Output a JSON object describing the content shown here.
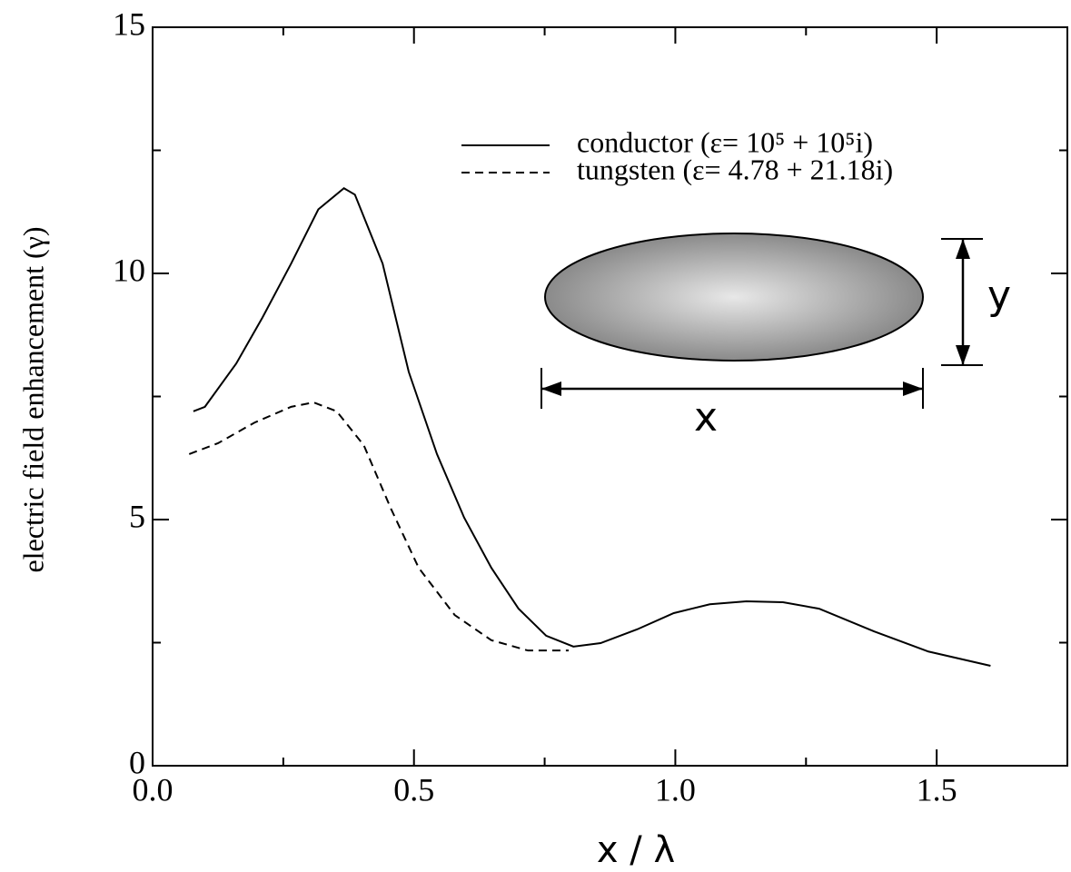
{
  "chart_data": {
    "type": "line",
    "x_label": "x / λ",
    "y_label": "electric field enhancement (γ)",
    "xlim": [
      0,
      1.75
    ],
    "ylim": [
      0,
      15
    ],
    "xticks": [
      {
        "value": 0,
        "label": "0.0"
      },
      {
        "value": 0.5,
        "label": "0.5"
      },
      {
        "value": 1,
        "label": "1.0"
      },
      {
        "value": 1.5,
        "label": "1.5"
      }
    ],
    "yticks": [
      0,
      5,
      10,
      15
    ],
    "xminor_ticks": [
      0.25,
      0.75,
      1.25
    ],
    "yminor_ticks": [
      2.5,
      7.5,
      12.5
    ],
    "legend": "upper right",
    "series": [
      {
        "name": "conductor (ε= 10⁵ + 10⁵i)",
        "color": "#000000",
        "line_style": "solid",
        "x": [
          0.078,
          0.1,
          0.16,
          0.21,
          0.265,
          0.317,
          0.366,
          0.387,
          0.44,
          0.49,
          0.544,
          0.596,
          0.648,
          0.7,
          0.753,
          0.805,
          0.857,
          0.927,
          0.997,
          1.066,
          1.136,
          1.206,
          1.275,
          1.38,
          1.484,
          1.603
        ],
        "values": [
          7.2,
          7.29,
          8.17,
          9.1,
          10.2,
          11.3,
          11.73,
          11.6,
          10.2,
          8.0,
          6.33,
          5.04,
          4.02,
          3.19,
          2.64,
          2.42,
          2.49,
          2.77,
          3.1,
          3.28,
          3.34,
          3.32,
          3.19,
          2.73,
          2.32,
          2.03
        ]
      },
      {
        "name": "tungsten (ε= 4.78 + 21.18i)",
        "color": "#000000",
        "line_style": "dashed",
        "x": [
          0.07,
          0.125,
          0.195,
          0.265,
          0.308,
          0.352,
          0.404,
          0.456,
          0.509,
          0.578,
          0.648,
          0.718,
          0.796
        ],
        "values": [
          6.33,
          6.55,
          6.97,
          7.29,
          7.38,
          7.2,
          6.51,
          5.22,
          4.02,
          3.06,
          2.55,
          2.34,
          2.34
        ]
      }
    ],
    "annotations": [
      "x",
      "y"
    ]
  }
}
